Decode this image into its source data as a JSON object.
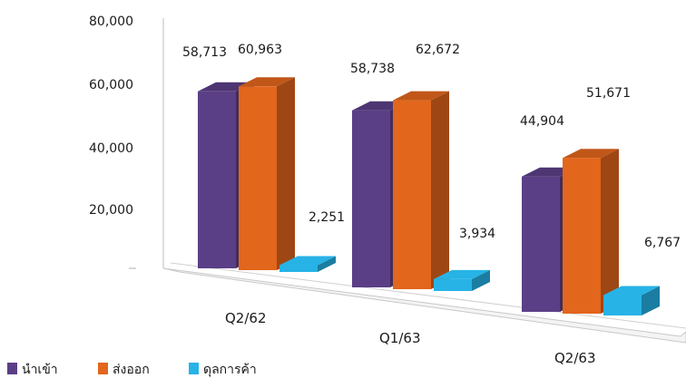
{
  "chart_data": {
    "type": "bar",
    "categories": [
      "Q2/62",
      "Q1/63",
      "Q2/63"
    ],
    "series": [
      {
        "name": "นำเข้า",
        "values": [
          58713,
          58738,
          44904
        ],
        "labels": [
          "58,713",
          "58,738",
          "44,904"
        ],
        "color": "#5b3f86"
      },
      {
        "name": "ส่งออก",
        "values": [
          60963,
          62672,
          51671
        ],
        "labels": [
          "60,963",
          "62,672",
          "51,671"
        ],
        "color": "#e2661c"
      },
      {
        "name": "ดุลการค้า",
        "values": [
          2251,
          3934,
          6767
        ],
        "labels": [
          "2,251",
          "3,934",
          "6,767"
        ],
        "color": "#27b3e6"
      }
    ],
    "y_ticks": [
      "80,000",
      "60,000",
      "40,000",
      "20,000"
    ],
    "y_tick_values": [
      80000,
      60000,
      40000,
      20000
    ],
    "ylim": [
      0,
      80000
    ],
    "legend_position": "bottom-left",
    "grid": false,
    "style": "3d-clustered-column"
  }
}
